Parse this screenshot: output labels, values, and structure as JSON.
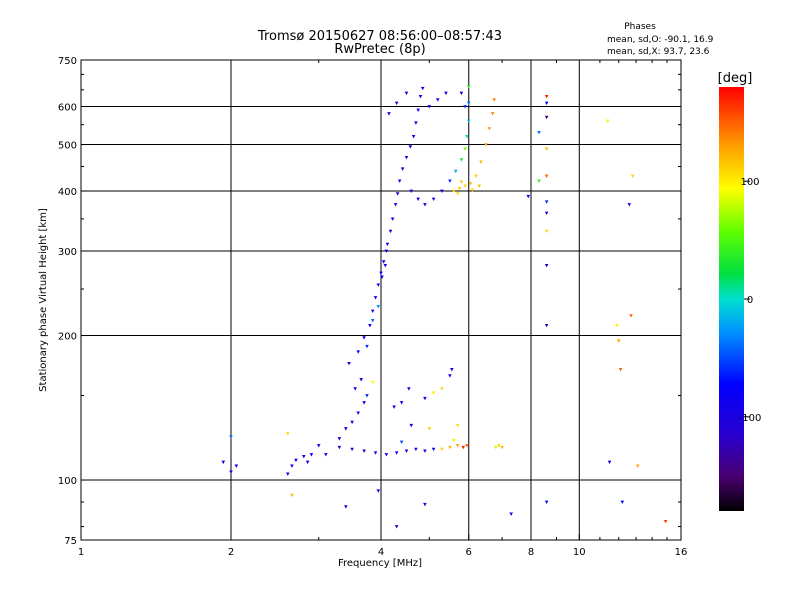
{
  "chart_data": {
    "type": "scatter",
    "title": "Tromsø 20150627 08:56:00–08:57:43",
    "subtitle": "RwPretec (8p)",
    "stats": {
      "heading": "Phases",
      "line_o": "mean, sd,O: -90.1, 16.9",
      "line_x": "mean, sd,X:  93.7, 23.6"
    },
    "xlabel": "Frequency [MHz]",
    "ylabel": "Stationary phase Virtual Height [km]",
    "x_scale": "log",
    "y_scale": "log",
    "xlim": [
      1,
      16
    ],
    "ylim": [
      75,
      750
    ],
    "x_ticks": [
      1,
      2,
      4,
      6,
      8,
      10,
      16
    ],
    "x_tick_labels": [
      "1",
      "2",
      "4",
      "6",
      "8",
      "10",
      "16"
    ],
    "y_ticks": [
      75,
      100,
      200,
      300,
      400,
      500,
      600,
      750
    ],
    "y_tick_labels": [
      "75",
      "100",
      "200",
      "300",
      "400",
      "500",
      "600",
      "750"
    ],
    "grid": true,
    "colorbar": {
      "label": "[deg]",
      "range": [
        -180,
        180
      ],
      "ticks": [
        100,
        0,
        -100
      ],
      "tick_labels": [
        "100",
        "0",
        "-100"
      ],
      "colormap": "rainbow"
    },
    "series": [
      {
        "points": [
          [
            1.93,
            109,
            -95
          ],
          [
            2.0,
            104,
            -90
          ],
          [
            2.05,
            107,
            -88
          ],
          [
            2.0,
            123,
            -40
          ],
          [
            2.6,
            103,
            -95
          ],
          [
            2.65,
            107,
            -90
          ],
          [
            2.7,
            110,
            -85
          ],
          [
            2.8,
            112,
            -95
          ],
          [
            2.85,
            109,
            -90
          ],
          [
            2.9,
            113,
            -80
          ],
          [
            3.0,
            118,
            -95
          ],
          [
            3.1,
            113,
            -92
          ],
          [
            2.6,
            125,
            110
          ],
          [
            2.65,
            93,
            120
          ],
          [
            3.4,
            88,
            -95
          ],
          [
            3.95,
            95,
            -90
          ],
          [
            4.3,
            80,
            -95
          ],
          [
            4.9,
            89,
            -92
          ],
          [
            3.3,
            122,
            -90
          ],
          [
            3.4,
            128,
            -95
          ],
          [
            3.5,
            132,
            -88
          ],
          [
            3.6,
            138,
            -92
          ],
          [
            3.7,
            145,
            -90
          ],
          [
            3.55,
            155,
            -85
          ],
          [
            3.65,
            162,
            -95
          ],
          [
            3.75,
            150,
            -60
          ],
          [
            3.85,
            160,
            95
          ],
          [
            4.25,
            142,
            -95
          ],
          [
            4.4,
            145,
            -90
          ],
          [
            4.55,
            155,
            -92
          ],
          [
            4.9,
            148,
            -85
          ],
          [
            5.1,
            152,
            100
          ],
          [
            5.3,
            155,
            110
          ],
          [
            5.5,
            165,
            -95
          ],
          [
            5.55,
            170,
            -90
          ],
          [
            4.6,
            130,
            -90
          ],
          [
            5.0,
            128,
            110
          ],
          [
            4.4,
            120,
            -50
          ],
          [
            5.7,
            130,
            105
          ],
          [
            3.45,
            175,
            -95
          ],
          [
            3.6,
            185,
            -90
          ],
          [
            3.7,
            198,
            -92
          ],
          [
            3.8,
            210,
            -88
          ],
          [
            3.85,
            225,
            -95
          ],
          [
            3.9,
            240,
            -90
          ],
          [
            3.95,
            255,
            -85
          ],
          [
            4.0,
            270,
            -92
          ],
          [
            4.05,
            285,
            -90
          ],
          [
            4.1,
            300,
            -95
          ],
          [
            3.75,
            190,
            -60
          ],
          [
            3.85,
            215,
            -40
          ],
          [
            3.95,
            230,
            -30
          ],
          [
            4.02,
            265,
            -90
          ],
          [
            4.08,
            280,
            -92
          ],
          [
            4.12,
            310,
            -90
          ],
          [
            4.18,
            330,
            -95
          ],
          [
            4.22,
            350,
            -88
          ],
          [
            4.28,
            375,
            -92
          ],
          [
            4.32,
            395,
            -90
          ],
          [
            4.36,
            420,
            -95
          ],
          [
            4.42,
            445,
            -88
          ],
          [
            4.5,
            470,
            -92
          ],
          [
            4.58,
            495,
            -90
          ],
          [
            4.65,
            520,
            -95
          ],
          [
            4.7,
            555,
            -85
          ],
          [
            4.75,
            590,
            -90
          ],
          [
            4.8,
            630,
            -92
          ],
          [
            4.85,
            655,
            -95
          ],
          [
            4.5,
            640,
            -85
          ],
          [
            4.3,
            610,
            -95
          ],
          [
            4.15,
            580,
            -88
          ],
          [
            5.2,
            620,
            -90
          ],
          [
            5.4,
            640,
            -95
          ],
          [
            5.0,
            600,
            -92
          ],
          [
            4.6,
            400,
            -95
          ],
          [
            4.75,
            385,
            -90
          ],
          [
            4.9,
            375,
            -92
          ],
          [
            5.1,
            385,
            -88
          ],
          [
            5.3,
            400,
            -95
          ],
          [
            5.5,
            420,
            -60
          ],
          [
            5.65,
            440,
            -20
          ],
          [
            5.8,
            465,
            30
          ],
          [
            5.9,
            490,
            60
          ],
          [
            5.95,
            520,
            10
          ],
          [
            6.0,
            560,
            -20
          ],
          [
            6.0,
            610,
            -40
          ],
          [
            6.0,
            660,
            40
          ],
          [
            5.8,
            640,
            -90
          ],
          [
            5.9,
            600,
            -60
          ],
          [
            5.6,
            400,
            110
          ],
          [
            5.75,
            405,
            115
          ],
          [
            5.9,
            410,
            110
          ],
          [
            6.05,
            415,
            120
          ],
          [
            6.2,
            430,
            115
          ],
          [
            6.35,
            460,
            120
          ],
          [
            6.5,
            500,
            125
          ],
          [
            6.6,
            540,
            130
          ],
          [
            6.7,
            580,
            135
          ],
          [
            6.75,
            620,
            140
          ],
          [
            5.7,
            395,
            108
          ],
          [
            6.1,
            402,
            112
          ],
          [
            5.8,
            418,
            115
          ],
          [
            6.3,
            410,
            118
          ],
          [
            3.3,
            117,
            -95
          ],
          [
            3.5,
            116,
            -90
          ],
          [
            3.7,
            115,
            -92
          ],
          [
            3.9,
            114,
            -88
          ],
          [
            4.1,
            113,
            -95
          ],
          [
            4.3,
            114,
            -90
          ],
          [
            4.5,
            115,
            -85
          ],
          [
            4.7,
            116,
            -92
          ],
          [
            4.9,
            115,
            -90
          ],
          [
            5.1,
            116,
            -95
          ],
          [
            5.3,
            116,
            110
          ],
          [
            5.5,
            117,
            120
          ],
          [
            5.7,
            118,
            130
          ],
          [
            5.85,
            117,
            170
          ],
          [
            5.95,
            118,
            150
          ],
          [
            6.8,
            117,
            80
          ],
          [
            6.9,
            118,
            110
          ],
          [
            7.0,
            117,
            120
          ],
          [
            5.6,
            121,
            100
          ],
          [
            8.6,
            90,
            -70
          ],
          [
            8.6,
            210,
            -120
          ],
          [
            8.6,
            280,
            -95
          ],
          [
            8.6,
            330,
            110
          ],
          [
            8.6,
            360,
            -90
          ],
          [
            8.6,
            380,
            -60
          ],
          [
            8.6,
            430,
            150
          ],
          [
            8.6,
            490,
            120
          ],
          [
            8.6,
            570,
            -150
          ],
          [
            8.6,
            610,
            -80
          ],
          [
            8.6,
            630,
            170
          ],
          [
            8.3,
            420,
            40
          ],
          [
            8.3,
            530,
            -40
          ],
          [
            7.9,
            390,
            -90
          ],
          [
            7.3,
            85,
            -95
          ],
          [
            11.4,
            560,
            100
          ],
          [
            11.9,
            210,
            100
          ],
          [
            12.0,
            195,
            130
          ],
          [
            12.1,
            170,
            150
          ],
          [
            12.2,
            90,
            -70
          ],
          [
            12.6,
            375,
            -90
          ],
          [
            12.8,
            430,
            110
          ],
          [
            13.1,
            107,
            130
          ],
          [
            14.9,
            82,
            160
          ],
          [
            11.5,
            109,
            -100
          ],
          [
            12.7,
            220,
            150
          ]
        ]
      }
    ]
  }
}
